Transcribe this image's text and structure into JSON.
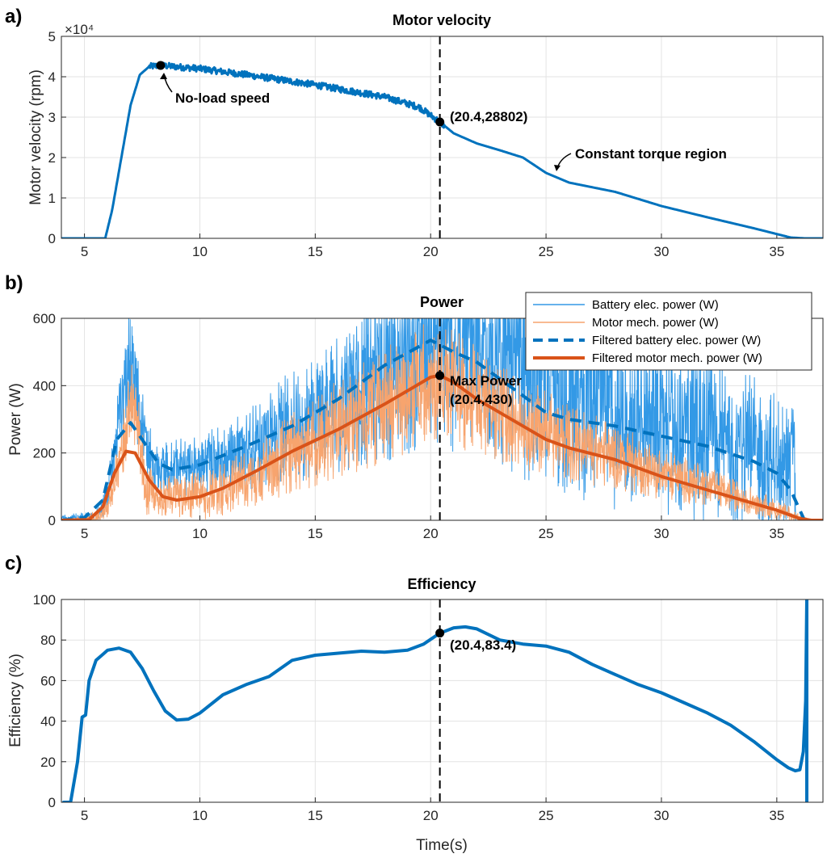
{
  "chart_data": [
    {
      "type": "line",
      "panel_label": "a)",
      "title": "Motor velocity",
      "xlabel": "",
      "ylabel": "Motor velocity (rpm)",
      "exponent_label": "×10⁴",
      "xlim": [
        4,
        37
      ],
      "ylim": [
        0,
        5
      ],
      "xticks": [
        5,
        10,
        15,
        20,
        25,
        30,
        35
      ],
      "yticks": [
        0,
        1,
        2,
        3,
        4,
        5
      ],
      "grid": true,
      "series": [
        {
          "name": "Motor velocity (rpm, ×10⁴)",
          "color": "#0072BD",
          "noise": 0.08,
          "points": [
            [
              4,
              0
            ],
            [
              5.9,
              0
            ],
            [
              6.2,
              0.7
            ],
            [
              6.6,
              2.0
            ],
            [
              7.0,
              3.3
            ],
            [
              7.4,
              4.05
            ],
            [
              7.8,
              4.25
            ],
            [
              8.3,
              4.28
            ],
            [
              10,
              4.2
            ],
            [
              12,
              4.05
            ],
            [
              15,
              3.8
            ],
            [
              18,
              3.5
            ],
            [
              19.5,
              3.25
            ],
            [
              20.4,
              2.88
            ],
            [
              21,
              2.6
            ],
            [
              22,
              2.35
            ],
            [
              23,
              2.18
            ],
            [
              24,
              2.0
            ],
            [
              25,
              1.62
            ],
            [
              26,
              1.38
            ],
            [
              28,
              1.15
            ],
            [
              30,
              0.8
            ],
            [
              32,
              0.52
            ],
            [
              34,
              0.25
            ],
            [
              35.6,
              0.02
            ],
            [
              36.2,
              0
            ],
            [
              37,
              0
            ]
          ]
        }
      ],
      "markers": [
        {
          "x": 8.3,
          "y": 4.28
        },
        {
          "x": 20.4,
          "y": 2.88
        }
      ],
      "vline_x": 20.4,
      "annotations": [
        "No-load speed",
        "(20.4,28802)",
        "Constant torque region"
      ]
    },
    {
      "type": "line",
      "panel_label": "b)",
      "title": "Power",
      "xlabel": "",
      "ylabel": "Power (W)",
      "xlim": [
        4,
        37
      ],
      "ylim": [
        0,
        600
      ],
      "xticks": [
        5,
        10,
        15,
        20,
        25,
        30,
        35
      ],
      "yticks": [
        0,
        200,
        400,
        600
      ],
      "grid": true,
      "legend": "top-right",
      "series": [
        {
          "name": "Battery elec. power (W)",
          "color": "#3399E6",
          "style": "noisy",
          "center": [
            [
              4,
              5
            ],
            [
              5.5,
              10
            ],
            [
              6,
              80
            ],
            [
              6.5,
              300
            ],
            [
              7,
              500
            ],
            [
              7.5,
              280
            ],
            [
              8,
              150
            ],
            [
              10,
              160
            ],
            [
              12,
              210
            ],
            [
              14,
              280
            ],
            [
              16,
              360
            ],
            [
              18,
              450
            ],
            [
              20,
              530
            ],
            [
              22,
              510
            ],
            [
              24,
              440
            ],
            [
              26,
              380
            ],
            [
              28,
              330
            ],
            [
              30,
              290
            ],
            [
              32,
              250
            ],
            [
              34,
              200
            ],
            [
              35.8,
              150
            ],
            [
              35.81,
              0
            ],
            [
              37,
              0
            ]
          ],
          "spread": [
            [
              4,
              10
            ],
            [
              5.5,
              20
            ],
            [
              6,
              60
            ],
            [
              7,
              180
            ],
            [
              8,
              80
            ],
            [
              12,
              120
            ],
            [
              16,
              220
            ],
            [
              20,
              330
            ],
            [
              24,
              320
            ],
            [
              28,
              300
            ],
            [
              32,
              260
            ],
            [
              35.8,
              200
            ],
            [
              35.81,
              0
            ],
            [
              37,
              0
            ]
          ]
        },
        {
          "name": "Motor mech. power (W)",
          "color": "#F7A46E",
          "style": "noisy",
          "center": [
            [
              4,
              0
            ],
            [
              5.5,
              5
            ],
            [
              6,
              40
            ],
            [
              6.5,
              160
            ],
            [
              7,
              350
            ],
            [
              7.4,
              240
            ],
            [
              7.6,
              110
            ],
            [
              8,
              70
            ],
            [
              10,
              70
            ],
            [
              12,
              120
            ],
            [
              14,
              200
            ],
            [
              16,
              270
            ],
            [
              18,
              340
            ],
            [
              20,
              420
            ],
            [
              21,
              400
            ],
            [
              22,
              350
            ],
            [
              24,
              290
            ],
            [
              26,
              230
            ],
            [
              28,
              190
            ],
            [
              30,
              140
            ],
            [
              32,
              100
            ],
            [
              34,
              55
            ],
            [
              35.5,
              20
            ],
            [
              36,
              5
            ],
            [
              37,
              0
            ]
          ],
          "spread": [
            [
              4,
              0
            ],
            [
              6,
              30
            ],
            [
              7,
              140
            ],
            [
              8,
              60
            ],
            [
              12,
              90
            ],
            [
              16,
              150
            ],
            [
              20,
              190
            ],
            [
              24,
              140
            ],
            [
              28,
              100
            ],
            [
              32,
              60
            ],
            [
              35.5,
              25
            ],
            [
              36.5,
              0
            ],
            [
              37,
              0
            ]
          ]
        },
        {
          "name": "Filtered battery elec. power (W)",
          "color": "#0072BD",
          "style": "dashed",
          "points": [
            [
              4,
              0
            ],
            [
              5,
              8
            ],
            [
              5.8,
              60
            ],
            [
              6.4,
              240
            ],
            [
              7,
              290
            ],
            [
              7.6,
              230
            ],
            [
              8.2,
              170
            ],
            [
              8.8,
              150
            ],
            [
              10,
              165
            ],
            [
              12,
              220
            ],
            [
              14,
              280
            ],
            [
              16,
              360
            ],
            [
              18,
              460
            ],
            [
              20,
              535
            ],
            [
              21,
              500
            ],
            [
              22,
              470
            ],
            [
              23,
              420
            ],
            [
              24,
              370
            ],
            [
              25,
              320
            ],
            [
              26,
              300
            ],
            [
              27,
              290
            ],
            [
              28,
              280
            ],
            [
              30,
              250
            ],
            [
              32,
              220
            ],
            [
              34,
              175
            ],
            [
              35,
              140
            ],
            [
              35.6,
              90
            ],
            [
              36.2,
              0
            ],
            [
              37,
              0
            ]
          ]
        },
        {
          "name": "Filtered motor mech. power (W)",
          "color": "#D95319",
          "style": "solid",
          "points": [
            [
              4,
              0
            ],
            [
              5.2,
              2
            ],
            [
              5.8,
              40
            ],
            [
              6.3,
              140
            ],
            [
              6.8,
              205
            ],
            [
              7.2,
              200
            ],
            [
              7.8,
              120
            ],
            [
              8.4,
              70
            ],
            [
              9,
              60
            ],
            [
              10,
              70
            ],
            [
              11,
              95
            ],
            [
              12.4,
              145
            ],
            [
              14,
              205
            ],
            [
              16,
              270
            ],
            [
              18,
              345
            ],
            [
              20,
              425
            ],
            [
              20.4,
              430
            ],
            [
              21,
              410
            ],
            [
              22,
              360
            ],
            [
              23,
              320
            ],
            [
              24,
              280
            ],
            [
              25,
              240
            ],
            [
              26,
              215
            ],
            [
              28,
              180
            ],
            [
              30,
              130
            ],
            [
              32,
              90
            ],
            [
              34,
              50
            ],
            [
              35,
              30
            ],
            [
              36,
              5
            ],
            [
              36.5,
              0
            ],
            [
              37,
              0
            ]
          ]
        }
      ],
      "markers": [
        {
          "x": 20.4,
          "y": 430
        }
      ],
      "vline_x": 20.4,
      "annotations": [
        "Max Power",
        "(20.4,430)"
      ]
    },
    {
      "type": "line",
      "panel_label": "c)",
      "title": "Efficiency",
      "xlabel": "Time(s)",
      "ylabel": "Efficiency (%)",
      "xlim": [
        4,
        37
      ],
      "ylim": [
        0,
        100
      ],
      "xticks": [
        5,
        10,
        15,
        20,
        25,
        30,
        35
      ],
      "yticks": [
        0,
        20,
        40,
        60,
        80,
        100
      ],
      "grid": true,
      "series": [
        {
          "name": "Efficiency (%)",
          "color": "#0072BD",
          "points": [
            [
              4.1,
              0
            ],
            [
              4.4,
              0
            ],
            [
              4.7,
              20
            ],
            [
              4.9,
              42
            ],
            [
              5.05,
              43
            ],
            [
              5.2,
              60
            ],
            [
              5.5,
              70
            ],
            [
              6.0,
              75
            ],
            [
              6.5,
              76
            ],
            [
              7.0,
              74
            ],
            [
              7.5,
              66
            ],
            [
              8.0,
              55
            ],
            [
              8.5,
              45
            ],
            [
              9.0,
              40.5
            ],
            [
              9.5,
              41
            ],
            [
              10,
              44
            ],
            [
              11,
              53
            ],
            [
              12,
              58
            ],
            [
              12.5,
              60
            ],
            [
              13,
              62
            ],
            [
              14,
              70
            ],
            [
              15,
              72.5
            ],
            [
              16,
              73.5
            ],
            [
              17,
              74.5
            ],
            [
              18,
              74
            ],
            [
              19,
              75
            ],
            [
              19.7,
              78
            ],
            [
              20.4,
              83.4
            ],
            [
              21,
              86
            ],
            [
              21.5,
              86.5
            ],
            [
              22,
              85.5
            ],
            [
              23,
              80
            ],
            [
              24,
              78
            ],
            [
              25,
              77
            ],
            [
              26,
              74
            ],
            [
              27,
              68
            ],
            [
              28,
              63
            ],
            [
              29,
              58
            ],
            [
              30,
              54
            ],
            [
              31,
              49
            ],
            [
              32,
              44
            ],
            [
              33,
              38
            ],
            [
              34,
              30
            ],
            [
              35,
              21
            ],
            [
              35.5,
              17
            ],
            [
              35.8,
              15.5
            ],
            [
              36.0,
              16
            ],
            [
              36.15,
              25
            ],
            [
              36.25,
              50
            ],
            [
              36.3,
              100
            ],
            [
              36.3,
              0
            ]
          ]
        }
      ],
      "markers": [
        {
          "x": 20.4,
          "y": 83.4
        }
      ],
      "vline_x": 20.4,
      "annotations": [
        "(20.4,83.4)"
      ]
    }
  ]
}
